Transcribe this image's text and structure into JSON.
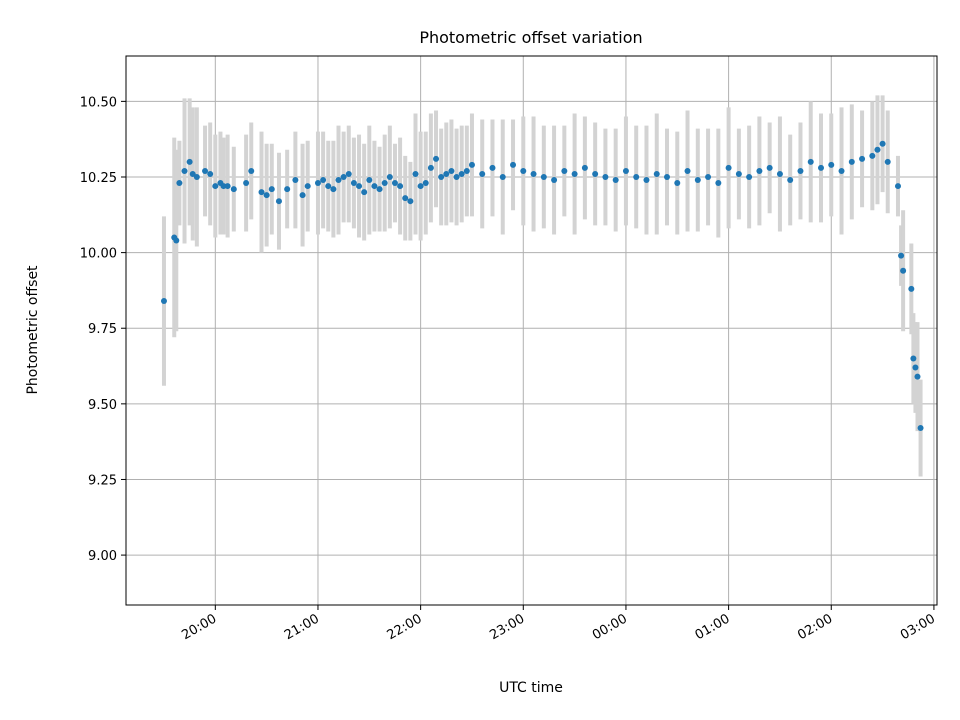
{
  "chart_data": {
    "type": "scatter",
    "title": "Photometric offset variation",
    "xlabel": "UTC time",
    "ylabel": "Photometric offset",
    "x_ticks": [
      "20:00",
      "21:00",
      "22:00",
      "23:00",
      "00:00",
      "01:00",
      "02:00",
      "03:00"
    ],
    "y_ticks": [
      "9.00",
      "9.25",
      "9.50",
      "9.75",
      "10.00",
      "10.25",
      "10.50"
    ],
    "x_tick_hours": [
      20,
      21,
      22,
      23,
      24,
      25,
      26,
      27
    ],
    "y_tick_values": [
      9.0,
      9.25,
      9.5,
      9.75,
      10.0,
      10.25,
      10.5
    ],
    "xlim_hours": [
      19.13,
      27.03
    ],
    "ylim": [
      8.835,
      10.65
    ],
    "grid": true,
    "colors": {
      "points": "#1f77b4",
      "error_bars": "#d3d3d3",
      "grid": "#b0b0b0"
    },
    "series": [
      {
        "x_hours": [
          19.5,
          19.6,
          19.62,
          19.65,
          19.7,
          19.75,
          19.78,
          19.82,
          19.9,
          19.95,
          20.0,
          20.05,
          20.08,
          20.12,
          20.18,
          20.3,
          20.35,
          20.45,
          20.5,
          20.55,
          20.62,
          20.7,
          20.78,
          20.85,
          20.9,
          21.0,
          21.05,
          21.1,
          21.15,
          21.2,
          21.25,
          21.3,
          21.35,
          21.4,
          21.45,
          21.5,
          21.55,
          21.6,
          21.65,
          21.7,
          21.75,
          21.8,
          21.85,
          21.9,
          21.95,
          22.0,
          22.05,
          22.1,
          22.15,
          22.2,
          22.25,
          22.3,
          22.35,
          22.4,
          22.45,
          22.5,
          22.6,
          22.7,
          22.8,
          22.9,
          23.0,
          23.1,
          23.2,
          23.3,
          23.4,
          23.5,
          23.6,
          23.7,
          23.8,
          23.9,
          24.0,
          24.1,
          24.2,
          24.3,
          24.4,
          24.5,
          24.6,
          24.7,
          24.8,
          24.9,
          25.0,
          25.1,
          25.2,
          25.3,
          25.4,
          25.5,
          25.6,
          25.7,
          25.8,
          25.9,
          26.0,
          26.1,
          26.2,
          26.3,
          26.4,
          26.45,
          26.5,
          26.55,
          26.65,
          26.68,
          26.7,
          26.78,
          26.8,
          26.82,
          26.84,
          26.87
        ],
        "y": [
          9.84,
          10.05,
          10.04,
          10.23,
          10.27,
          10.3,
          10.26,
          10.25,
          10.27,
          10.26,
          10.22,
          10.23,
          10.22,
          10.22,
          10.21,
          10.23,
          10.27,
          10.2,
          10.19,
          10.21,
          10.17,
          10.21,
          10.24,
          10.19,
          10.22,
          10.23,
          10.24,
          10.22,
          10.21,
          10.24,
          10.25,
          10.26,
          10.23,
          10.22,
          10.2,
          10.24,
          10.22,
          10.21,
          10.23,
          10.25,
          10.23,
          10.22,
          10.18,
          10.17,
          10.26,
          10.22,
          10.23,
          10.28,
          10.31,
          10.25,
          10.26,
          10.27,
          10.25,
          10.26,
          10.27,
          10.29,
          10.26,
          10.28,
          10.25,
          10.29,
          10.27,
          10.26,
          10.25,
          10.24,
          10.27,
          10.26,
          10.28,
          10.26,
          10.25,
          10.24,
          10.27,
          10.25,
          10.24,
          10.26,
          10.25,
          10.23,
          10.27,
          10.24,
          10.25,
          10.23,
          10.28,
          10.26,
          10.25,
          10.27,
          10.28,
          10.26,
          10.24,
          10.27,
          10.3,
          10.28,
          10.29,
          10.27,
          10.3,
          10.31,
          10.32,
          10.34,
          10.36,
          10.3,
          10.22,
          9.99,
          9.94,
          9.88,
          9.65,
          9.62,
          9.59,
          9.42
        ],
        "err": [
          0.28,
          0.33,
          0.3,
          0.14,
          0.24,
          0.21,
          0.22,
          0.23,
          0.15,
          0.17,
          0.17,
          0.17,
          0.16,
          0.17,
          0.14,
          0.16,
          0.16,
          0.2,
          0.17,
          0.15,
          0.16,
          0.13,
          0.16,
          0.17,
          0.15,
          0.17,
          0.16,
          0.15,
          0.16,
          0.18,
          0.15,
          0.16,
          0.15,
          0.17,
          0.16,
          0.18,
          0.15,
          0.14,
          0.16,
          0.17,
          0.13,
          0.16,
          0.14,
          0.13,
          0.2,
          0.18,
          0.17,
          0.18,
          0.16,
          0.16,
          0.17,
          0.17,
          0.16,
          0.16,
          0.15,
          0.17,
          0.18,
          0.16,
          0.19,
          0.15,
          0.18,
          0.19,
          0.17,
          0.18,
          0.15,
          0.2,
          0.17,
          0.17,
          0.16,
          0.17,
          0.18,
          0.17,
          0.18,
          0.2,
          0.16,
          0.17,
          0.2,
          0.17,
          0.16,
          0.18,
          0.2,
          0.15,
          0.17,
          0.18,
          0.15,
          0.19,
          0.15,
          0.16,
          0.2,
          0.18,
          0.17,
          0.21,
          0.19,
          0.16,
          0.18,
          0.18,
          0.16,
          0.17,
          0.1,
          0.1,
          0.2,
          0.15,
          0.15,
          0.15,
          0.18,
          0.16
        ]
      }
    ]
  }
}
